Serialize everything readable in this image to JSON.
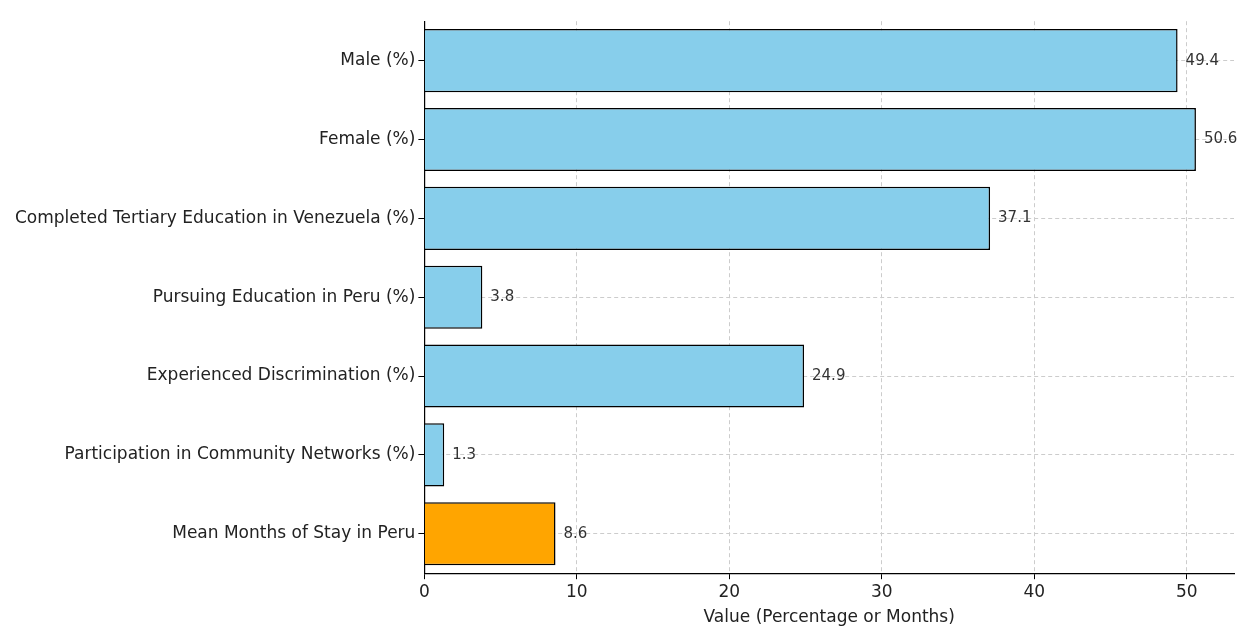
{
  "chart_data": {
    "type": "bar",
    "orientation": "horizontal",
    "xlabel": "Value (Percentage or Months)",
    "categories": [
      "Male (%)",
      "Female (%)",
      "Completed Tertiary Education in Venezuela (%)",
      "Pursuing Education in Peru (%)",
      "Experienced Discrimination (%)",
      "Participation in Community Networks (%)",
      "Mean Months of Stay in Peru"
    ],
    "values": [
      49.4,
      50.6,
      37.1,
      3.8,
      24.9,
      1.3,
      8.6
    ],
    "colors": [
      "#87ceeb",
      "#87ceeb",
      "#87ceeb",
      "#87ceeb",
      "#87ceeb",
      "#87ceeb",
      "#ffa500"
    ],
    "xlim": [
      0,
      53.1
    ],
    "xticks": [
      0,
      10,
      20,
      30,
      40,
      50
    ],
    "grid": true,
    "data_labels": true
  }
}
